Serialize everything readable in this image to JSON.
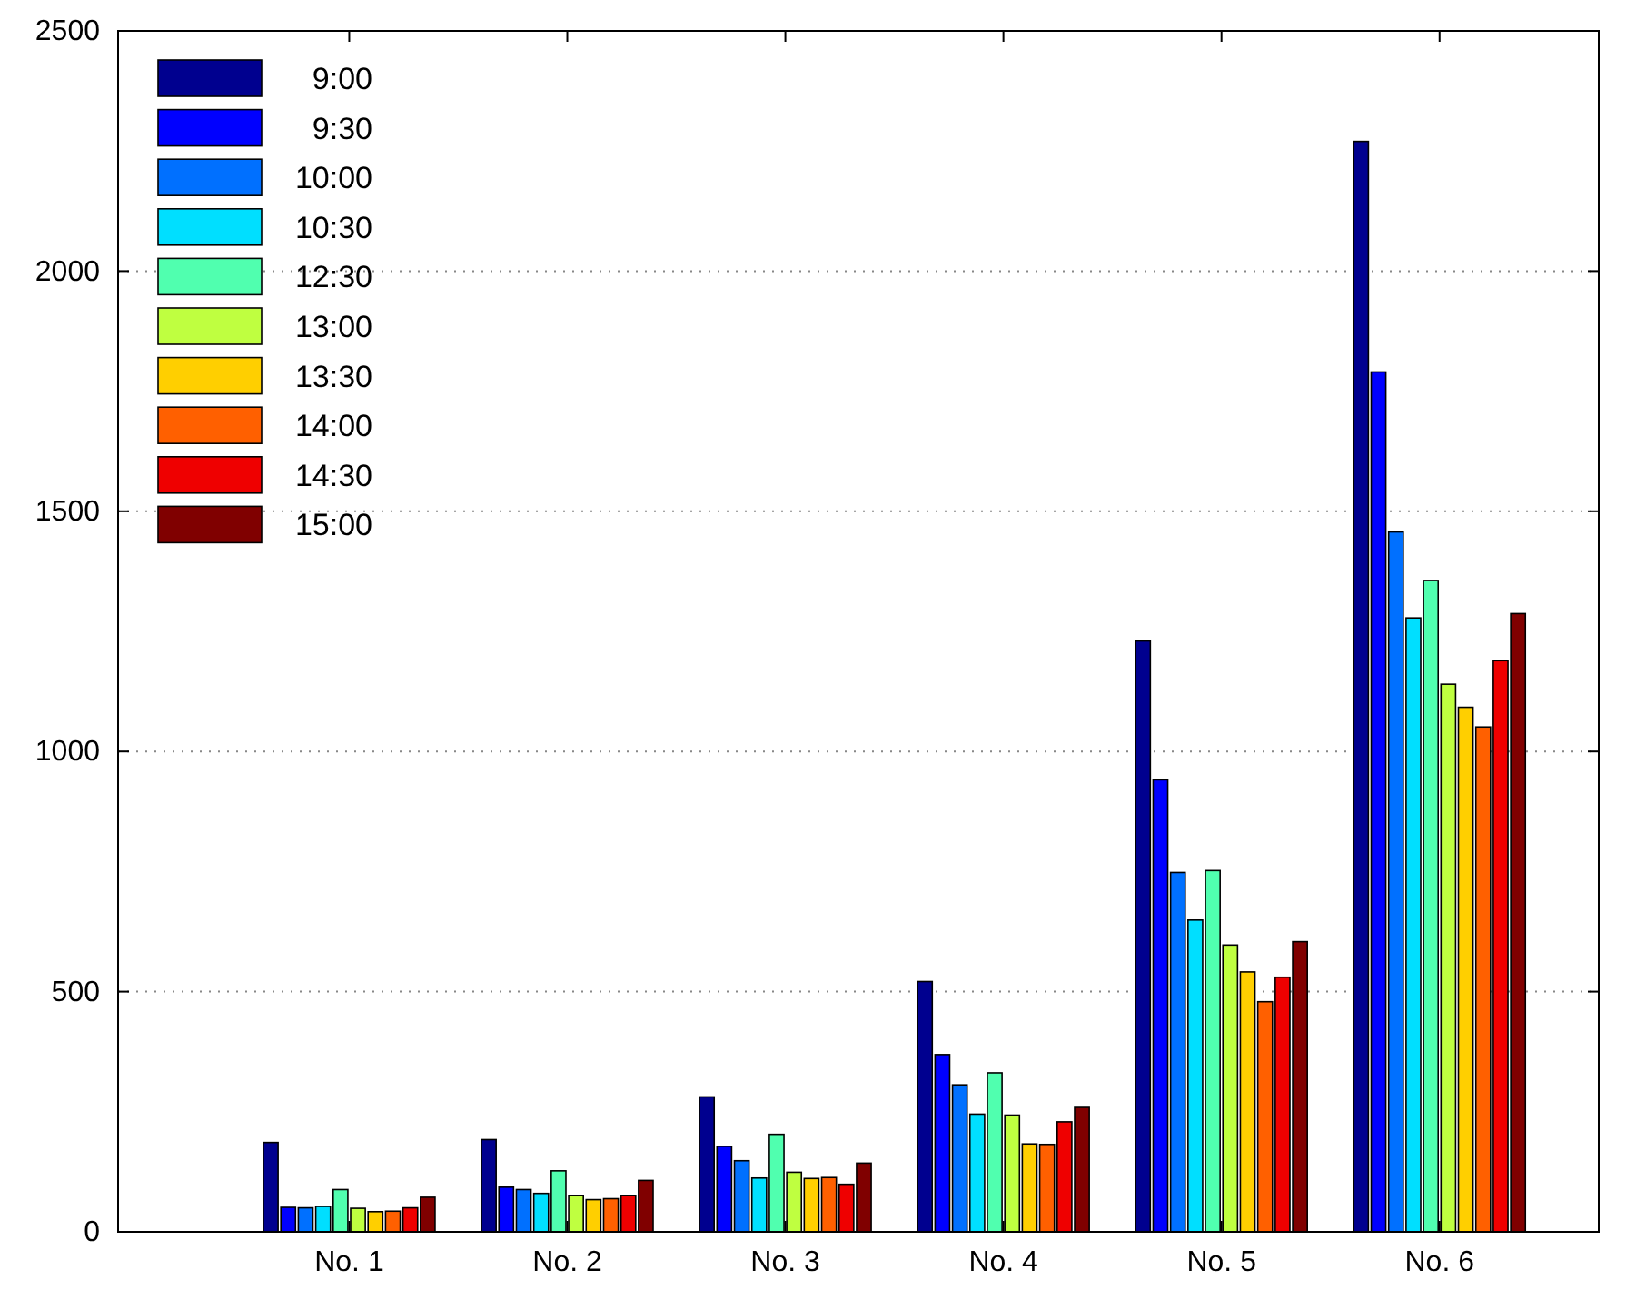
{
  "chart_data": {
    "type": "bar",
    "categories": [
      "No. 1",
      "No. 2",
      "No. 3",
      "No. 4",
      "No. 5",
      "No. 6"
    ],
    "series": [
      {
        "name": "9:00",
        "color": "#00008f",
        "values": [
          186,
          192,
          281,
          521,
          1230,
          2270
        ]
      },
      {
        "name": "9:30",
        "color": "#0000ff",
        "values": [
          51,
          93,
          178,
          369,
          941,
          1790
        ]
      },
      {
        "name": "10:00",
        "color": "#0070ff",
        "values": [
          50,
          88,
          148,
          306,
          748,
          1457
        ]
      },
      {
        "name": "10:30",
        "color": "#00dfff",
        "values": [
          53,
          80,
          112,
          245,
          649,
          1278
        ]
      },
      {
        "name": "12:30",
        "color": "#50ffaf",
        "values": [
          88,
          127,
          203,
          331,
          752,
          1356
        ]
      },
      {
        "name": "13:00",
        "color": "#bfff40",
        "values": [
          49,
          76,
          124,
          243,
          597,
          1140
        ]
      },
      {
        "name": "13:30",
        "color": "#ffcf00",
        "values": [
          42,
          67,
          111,
          183,
          541,
          1092
        ]
      },
      {
        "name": "14:00",
        "color": "#ff6000",
        "values": [
          43,
          69,
          113,
          182,
          479,
          1051
        ]
      },
      {
        "name": "14:30",
        "color": "#ef0000",
        "values": [
          50,
          76,
          99,
          229,
          530,
          1189
        ]
      },
      {
        "name": "15:00",
        "color": "#800000",
        "values": [
          72,
          107,
          143,
          259,
          604,
          1287
        ]
      }
    ],
    "ylim": [
      0,
      2500
    ],
    "yticks": [
      0,
      500,
      1000,
      1500,
      2000,
      2500
    ],
    "grid": "y",
    "legend": "top left"
  }
}
